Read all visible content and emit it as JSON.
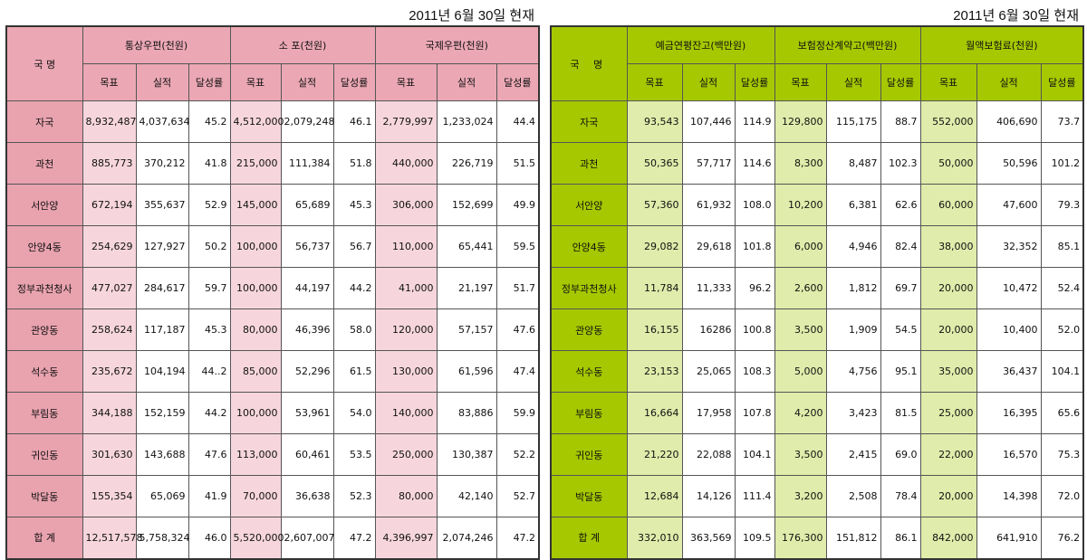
{
  "as_of": "2011년 6월 30일 현재",
  "country_header": "국 명",
  "sub_headers": [
    "목표",
    "실적",
    "달성률"
  ],
  "left": {
    "groups": [
      "통상우편(천원)",
      "소 포(천원)",
      "국제우편(천원)"
    ],
    "rows": [
      {
        "name": "자국",
        "v": [
          "8,932,487",
          "4,037,634",
          "45.2",
          "4,512,000",
          "2,079,248",
          "46.1",
          "2,779,997",
          "1,233,024",
          "44.4"
        ]
      },
      {
        "name": "과천",
        "v": [
          "885,773",
          "370,212",
          "41.8",
          "215,000",
          "111,384",
          "51.8",
          "440,000",
          "226,719",
          "51.5"
        ]
      },
      {
        "name": "서안양",
        "v": [
          "672,194",
          "355,637",
          "52.9",
          "145,000",
          "65,689",
          "45.3",
          "306,000",
          "152,699",
          "49.9"
        ]
      },
      {
        "name": "안양4동",
        "v": [
          "254,629",
          "127,927",
          "50.2",
          "100,000",
          "56,737",
          "56.7",
          "110,000",
          "65,441",
          "59.5"
        ]
      },
      {
        "name": "정부과천청사",
        "v": [
          "477,027",
          "284,617",
          "59.7",
          "100,000",
          "44,197",
          "44.2",
          "41,000",
          "21,197",
          "51.7"
        ]
      },
      {
        "name": "관양동",
        "v": [
          "258,624",
          "117,187",
          "45.3",
          "80,000",
          "46,396",
          "58.0",
          "120,000",
          "57,157",
          "47.6"
        ]
      },
      {
        "name": "석수동",
        "v": [
          "235,672",
          "104,194",
          "44..2",
          "85,000",
          "52,296",
          "61.5",
          "130,000",
          "61,596",
          "47.4"
        ]
      },
      {
        "name": "부림동",
        "v": [
          "344,188",
          "152,159",
          "44.2",
          "100,000",
          "53,961",
          "54.0",
          "140,000",
          "83,886",
          "59.9"
        ]
      },
      {
        "name": "귀인동",
        "v": [
          "301,630",
          "143,688",
          "47.6",
          "113,000",
          "60,461",
          "53.5",
          "250,000",
          "130,387",
          "52.2"
        ]
      },
      {
        "name": "박달동",
        "v": [
          "155,354",
          "65,069",
          "41.9",
          "70,000",
          "36,638",
          "52.3",
          "80,000",
          "42,140",
          "52.7"
        ]
      },
      {
        "name": "합 계",
        "v": [
          "12,517,578",
          "5,758,324",
          "46.0",
          "5,520,000",
          "2,607,007",
          "47.2",
          "4,396,997",
          "2,074,246",
          "47.2"
        ]
      }
    ]
  },
  "right": {
    "groups": [
      "예금연평잔고(백만원)",
      "보험정산계약고(백만원)",
      "월액보험료(천원)"
    ],
    "rows": [
      {
        "name": "자국",
        "v": [
          "93,543",
          "107,446",
          "114.9",
          "129,800",
          "115,175",
          "88.7",
          "552,000",
          "406,690",
          "73.7"
        ]
      },
      {
        "name": "과천",
        "v": [
          "50,365",
          "57,717",
          "114.6",
          "8,300",
          "8,487",
          "102.3",
          "50,000",
          "50,596",
          "101.2"
        ]
      },
      {
        "name": "서안양",
        "v": [
          "57,360",
          "61,932",
          "108.0",
          "10,200",
          "6,381",
          "62.6",
          "60,000",
          "47,600",
          "79.3"
        ]
      },
      {
        "name": "안양4동",
        "v": [
          "29,082",
          "29,618",
          "101.8",
          "6,000",
          "4,946",
          "82.4",
          "38,000",
          "32,352",
          "85.1"
        ]
      },
      {
        "name": "정부과천청사",
        "v": [
          "11,784",
          "11,333",
          "96.2",
          "2,600",
          "1,812",
          "69.7",
          "20,000",
          "10,472",
          "52.4"
        ]
      },
      {
        "name": "관양동",
        "v": [
          "16,155",
          "16286",
          "100.8",
          "3,500",
          "1,909",
          "54.5",
          "20,000",
          "10,400",
          "52.0"
        ]
      },
      {
        "name": "석수동",
        "v": [
          "23,153",
          "25,065",
          "108.3",
          "5,000",
          "4,756",
          "95.1",
          "35,000",
          "36,437",
          "104.1"
        ]
      },
      {
        "name": "부림동",
        "v": [
          "16,664",
          "17,958",
          "107.8",
          "4,200",
          "3,423",
          "81.5",
          "25,000",
          "16,395",
          "65.6"
        ]
      },
      {
        "name": "귀인동",
        "v": [
          "21,220",
          "22,088",
          "104.1",
          "3,500",
          "2,415",
          "69.0",
          "22,000",
          "16,570",
          "75.3"
        ]
      },
      {
        "name": "박달동",
        "v": [
          "12,684",
          "14,126",
          "111.4",
          "3,200",
          "2,508",
          "78.4",
          "20,000",
          "14,398",
          "72.0"
        ]
      },
      {
        "name": "합 계",
        "v": [
          "332,010",
          "363,569",
          "109.5",
          "176,300",
          "151,812",
          "86.1",
          "842,000",
          "641,910",
          "76.2"
        ]
      }
    ]
  }
}
